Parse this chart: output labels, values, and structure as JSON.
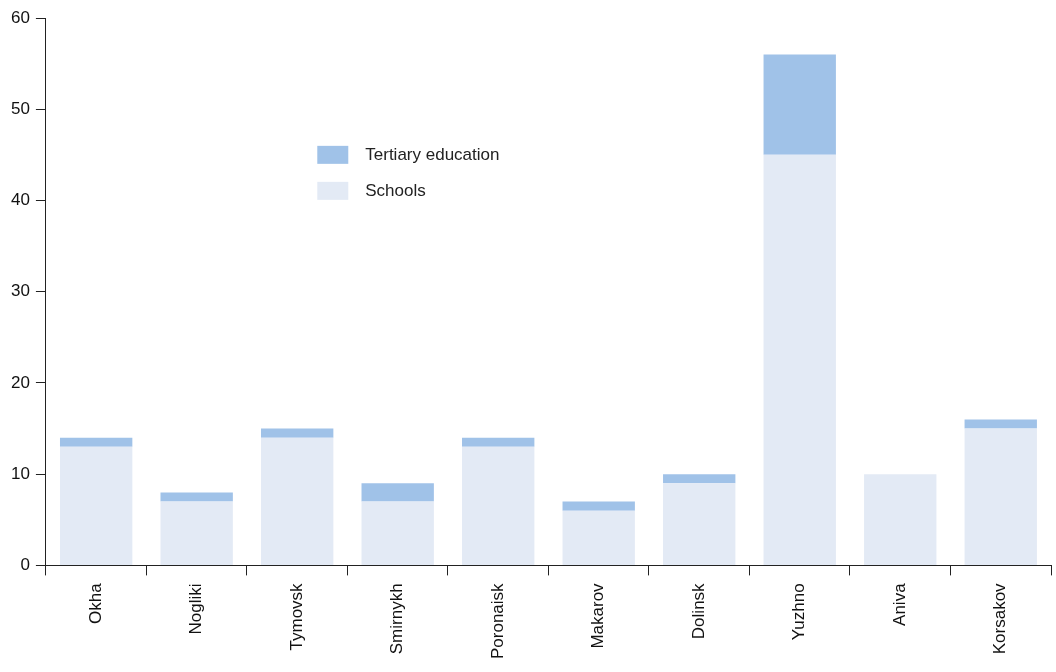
{
  "chart_data": {
    "type": "bar",
    "stacked": true,
    "categories": [
      "Okha",
      "Nogliki",
      "Tymovsk",
      "Smirnykh",
      "Poronaisk",
      "Makarov",
      "Dolinsk",
      "Yuzhno",
      "Aniva",
      "Korsakov"
    ],
    "series": [
      {
        "name": "Schools",
        "color": "#e3eaf5",
        "values": [
          13,
          7,
          14,
          7,
          13,
          6,
          9,
          45,
          10,
          15
        ]
      },
      {
        "name": "Tertiary education",
        "color": "#a0c2e8",
        "values": [
          1,
          1,
          1,
          2,
          1,
          1,
          1,
          11,
          0,
          1
        ]
      }
    ],
    "ylim": [
      0,
      60
    ],
    "yticks": [
      0,
      10,
      20,
      30,
      40,
      50,
      60
    ],
    "grid": false,
    "legend": "top left"
  }
}
